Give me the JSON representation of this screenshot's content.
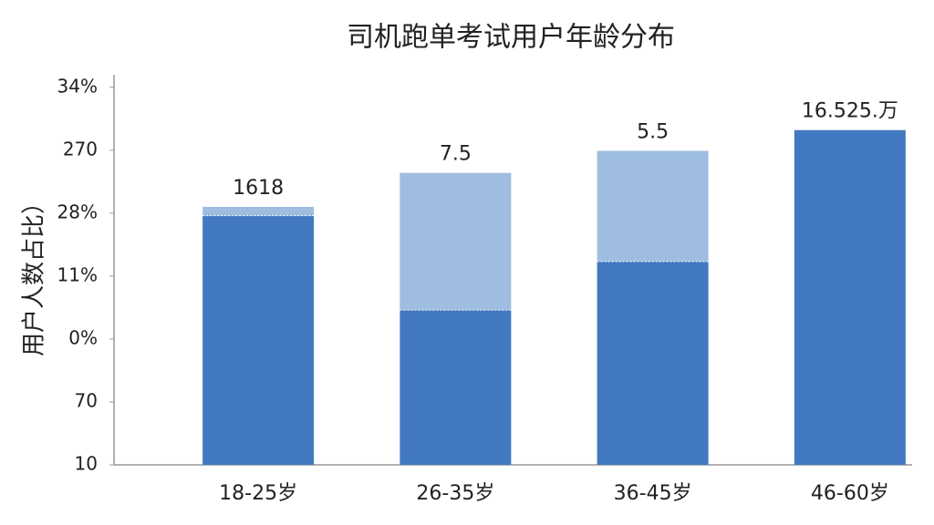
{
  "chart_data": {
    "type": "stacked_bar",
    "title": "司机跑单考试用户年龄分布",
    "ylabel": "用户人数占比）",
    "categories": [
      "18-25岁",
      "26-35岁",
      "36-45岁",
      "46-60岁"
    ],
    "series": [
      {
        "color": "#4279c0",
        "values": [
          3.96,
          2.46,
          3.23,
          5.32
        ]
      },
      {
        "color": "#9ebde0",
        "values": [
          0.14,
          2.18,
          1.76,
          0
        ]
      }
    ],
    "annotations": [
      "1618",
      "7.5",
      "5.5",
      "16.525.万"
    ],
    "ylim": [
      0,
      6.2
    ],
    "yticks": [
      {
        "value": 0,
        "label": "10"
      },
      {
        "value": 1,
        "label": "70"
      },
      {
        "value": 2,
        "label": "0%"
      },
      {
        "value": 3,
        "label": "11%"
      },
      {
        "value": 4,
        "label": "28%"
      },
      {
        "value": 5,
        "label": "270"
      },
      {
        "value": 6,
        "label": "34%"
      }
    ]
  }
}
